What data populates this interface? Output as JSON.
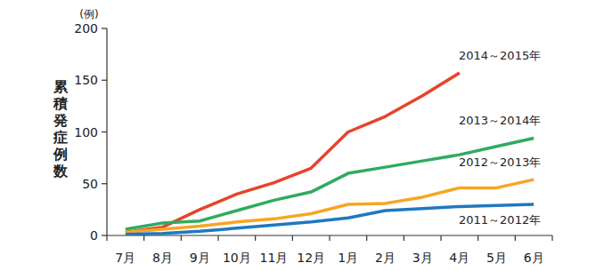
{
  "chart_data": {
    "type": "line",
    "y_label": "累積発症例数",
    "y_unit_label": "(例)",
    "categories": [
      "7月",
      "8月",
      "9月",
      "10月",
      "11月",
      "12月",
      "1月",
      "2月",
      "3月",
      "4月",
      "5月",
      "6月"
    ],
    "series": [
      {
        "name": "2014～2015年",
        "color": "#e8432b",
        "values": [
          3,
          8,
          25,
          40,
          51,
          65,
          100,
          115,
          135,
          157,
          null,
          null
        ]
      },
      {
        "name": "2013～2014年",
        "color": "#2fab60",
        "values": [
          6,
          12,
          14,
          24,
          34,
          42,
          60,
          66,
          72,
          78,
          86,
          94
        ]
      },
      {
        "name": "2012～2013年",
        "color": "#f5a623",
        "values": [
          3,
          6,
          9,
          13,
          16,
          21,
          30,
          31,
          37,
          46,
          46,
          54
        ]
      },
      {
        "name": "2011～2012年",
        "color": "#1f78c0",
        "values": [
          1,
          2,
          4,
          7,
          10,
          13,
          17,
          24,
          26,
          28,
          29,
          30
        ]
      }
    ],
    "ylim": [
      0,
      200
    ],
    "yticks": [
      0,
      50,
      100,
      150,
      200
    ],
    "grid": false
  }
}
